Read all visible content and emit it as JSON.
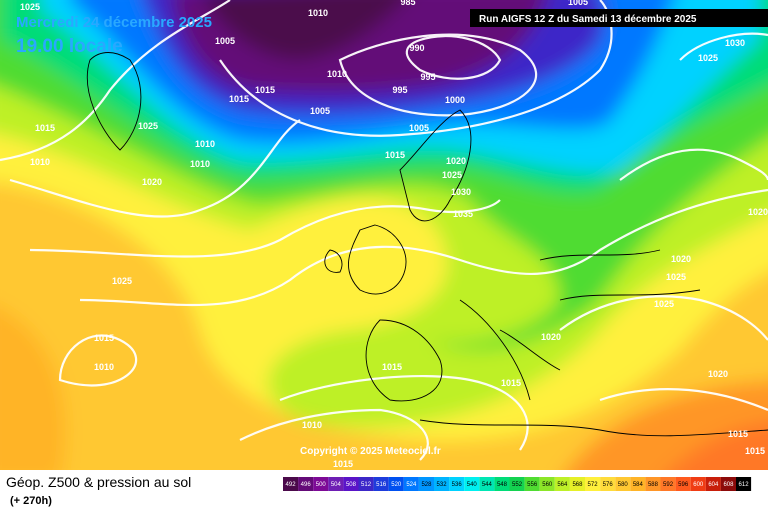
{
  "header": {
    "date": "Mercredi 24 décembre 2025",
    "time": "19.00 locale",
    "run": "Run AIGFS 12 Z du Samedi 13 décembre 2025"
  },
  "isobar_labels": [
    1025,
    1010,
    985,
    1005,
    1030,
    1025,
    1005,
    990,
    1010,
    995,
    995,
    1000,
    1015,
    1015,
    1005,
    1025,
    1015,
    1005,
    1010,
    1010,
    1010,
    1015,
    1020,
    1025,
    1020,
    1030,
    1035,
    1020,
    1020,
    1025,
    1025,
    1025,
    1015,
    1020,
    1010,
    1015,
    1015,
    1020,
    1010,
    1015,
    1015,
    1015
  ],
  "copyright": "Copyright © 2025 Meteociel.fr",
  "footer": {
    "title": "Géop. Z500 & pression au sol",
    "lead_time": "(+ 270h)"
  },
  "color_scale": {
    "values": [
      492,
      496,
      500,
      504,
      508,
      512,
      516,
      520,
      524,
      528,
      532,
      536,
      540,
      544,
      548,
      552,
      556,
      560,
      564,
      568,
      572,
      576,
      580,
      584,
      588,
      592,
      596,
      600,
      604,
      608,
      612
    ],
    "colors": [
      "#4b0a4b",
      "#640a78",
      "#7d0a96",
      "#6e1eb4",
      "#5a14c8",
      "#3c28c8",
      "#1e3cdc",
      "#0050f0",
      "#0078ff",
      "#0096ff",
      "#00b4ff",
      "#00d2ff",
      "#00f0f0",
      "#00e6b4",
      "#00dc78",
      "#14d250",
      "#50dc32",
      "#8ce628",
      "#bef028",
      "#e6f028",
      "#fff03c",
      "#ffdc3c",
      "#ffc832",
      "#ffb428",
      "#ff9628",
      "#ff7828",
      "#ff5a1e",
      "#f03c14",
      "#c81e0a",
      "#8c0a0a",
      "#000000"
    ]
  }
}
